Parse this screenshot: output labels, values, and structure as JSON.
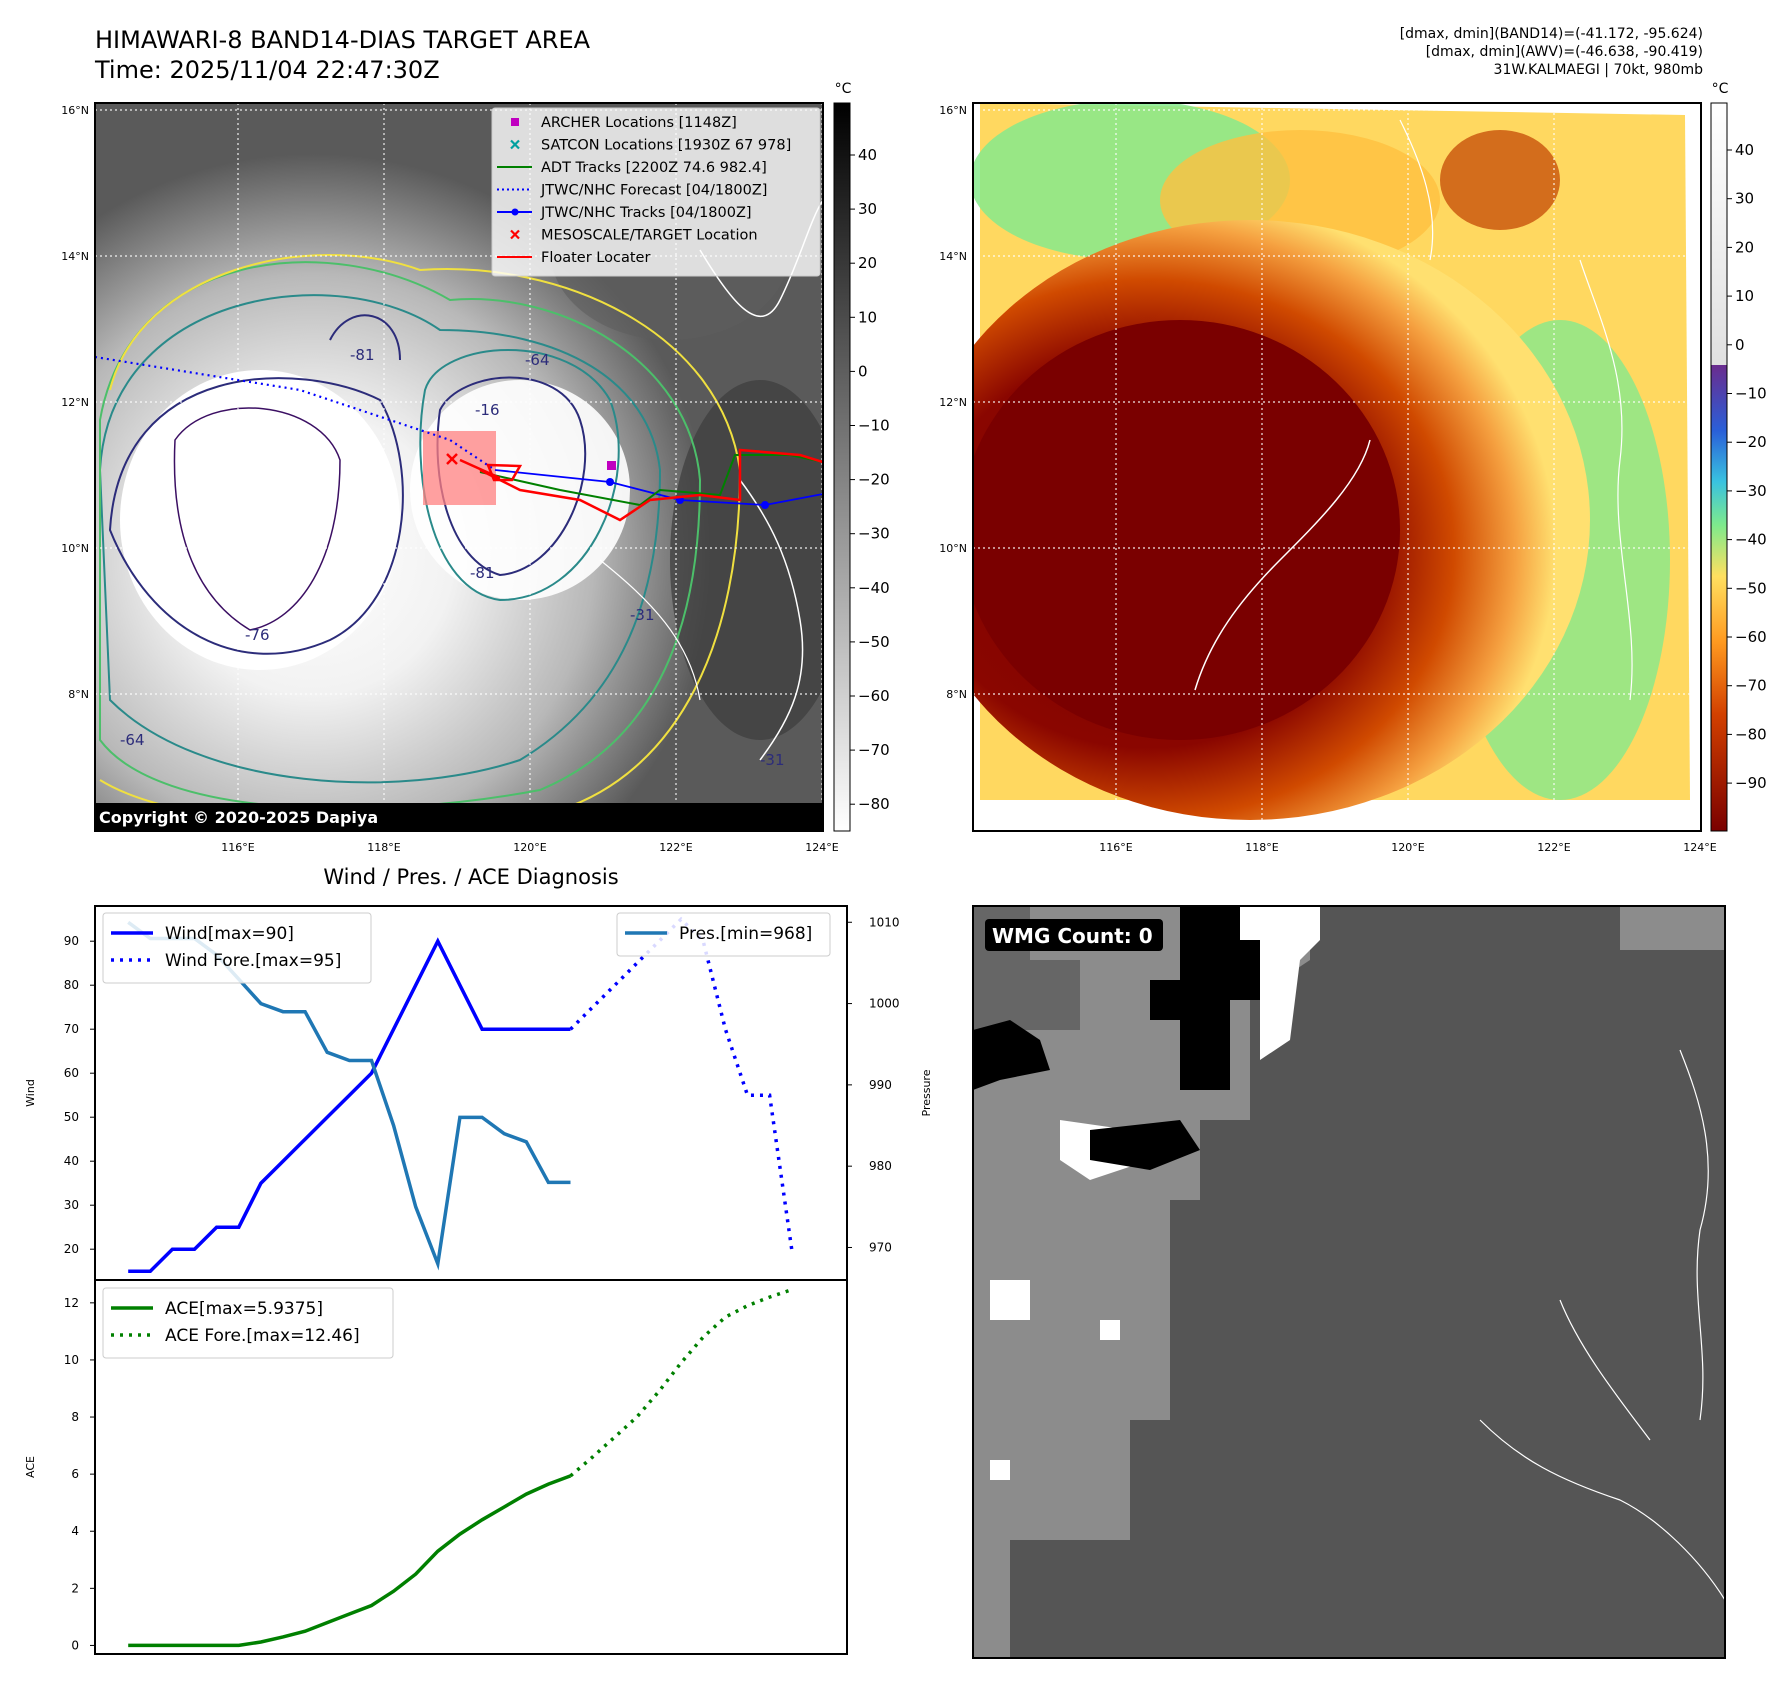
{
  "header": {
    "title_line1": "HIMAWARI-8 BAND14-DIAS TARGET AREA",
    "title_line2": "Time: 2025/11/04 22:47:30Z",
    "info_line1": "[dmax, dmin](BAND14)=(-41.172, -95.624)",
    "info_line2": "[dmax, dmin](AWV)=(-46.638, -90.419)",
    "info_line3": "31W.KALMAEGI | 70kt, 980mb"
  },
  "map_ir": {
    "lat_labels": [
      "16°N",
      "14°N",
      "12°N",
      "10°N",
      "8°N"
    ],
    "lon_labels": [
      "116°E",
      "118°E",
      "120°E",
      "122°E",
      "124°E"
    ],
    "copyright": "Copyright © 2020-2025 Dapiya",
    "contour_labels": [
      "-81",
      "-64",
      "-16",
      "-76",
      "-81",
      "-31",
      "-64",
      "-31"
    ],
    "legend": [
      {
        "label": "ARCHER Locations [1148Z]",
        "color": "#c000c0",
        "marker": "square"
      },
      {
        "label": "SATCON Locations [1930Z 67 978]",
        "color": "#00a0a0",
        "marker": "x"
      },
      {
        "label": "ADT Tracks [2200Z 74.6 982.4]",
        "color": "#008000",
        "marker": "line"
      },
      {
        "label": "JTWC/NHC Forecast [04/1800Z]",
        "color": "#0000ff",
        "marker": "dotted"
      },
      {
        "label": "JTWC/NHC Tracks [04/1800Z]",
        "color": "#0000ff",
        "marker": "line-dot"
      },
      {
        "label": "MESOSCALE/TARGET Location",
        "color": "#ff0000",
        "marker": "x"
      },
      {
        "label": "Floater Locater",
        "color": "#ff0000",
        "marker": "line"
      }
    ],
    "colorbar": {
      "unit": "°C",
      "ticks": [
        "40",
        "30",
        "20",
        "10",
        "0",
        "−10",
        "−20",
        "−30",
        "−40",
        "−50",
        "−60",
        "−70",
        "−80"
      ]
    }
  },
  "map_awv": {
    "lat_labels": [
      "16°N",
      "14°N",
      "12°N",
      "10°N",
      "8°N"
    ],
    "lon_labels": [
      "116°E",
      "118°E",
      "120°E",
      "122°E",
      "124°E"
    ],
    "colorbar": {
      "unit": "°C",
      "ticks": [
        "40",
        "30",
        "20",
        "10",
        "0",
        "−10",
        "−20",
        "−30",
        "−40",
        "−50",
        "−60",
        "−70",
        "−80",
        "−90"
      ]
    }
  },
  "wmg": {
    "label": "WMG Count: 0"
  },
  "chart_data": [
    {
      "type": "line",
      "title": "Wind / Pres. / ACE Diagnosis",
      "ylabel": "Wind",
      "ylabel_right": "Pressure",
      "ylim": [
        13,
        98
      ],
      "ylim_right": [
        966,
        1012
      ],
      "y_ticks": [
        20,
        30,
        40,
        50,
        60,
        70,
        80,
        90
      ],
      "y_ticks_right": [
        970,
        980,
        990,
        1000,
        1010
      ],
      "x": [
        0,
        1,
        2,
        3,
        4,
        5,
        6,
        7,
        8,
        9,
        10,
        11,
        12,
        13,
        14,
        15,
        16,
        17,
        18,
        19,
        20,
        21,
        22,
        23,
        24,
        25,
        26,
        27,
        28,
        29,
        30
      ],
      "xlim": [
        -1.5,
        32.5
      ],
      "series": [
        {
          "name": "Wind[max=90]",
          "axis": "left",
          "style": "solid",
          "color": "#0000ff",
          "x": [
            0,
            1,
            2,
            3,
            4,
            5,
            6,
            7,
            8,
            9,
            10,
            11,
            12,
            13,
            14,
            15,
            16,
            17,
            18,
            19,
            20
          ],
          "values": [
            15,
            15,
            20,
            20,
            25,
            25,
            35,
            40,
            45,
            50,
            55,
            60,
            70,
            80,
            90,
            80,
            70,
            70,
            70,
            70,
            70
          ]
        },
        {
          "name": "Wind Fore.[max=95]",
          "axis": "left",
          "style": "dotted",
          "color": "#0000ff",
          "x": [
            20,
            21,
            22,
            23,
            24,
            25,
            26,
            27,
            28,
            29,
            30
          ],
          "values": [
            70,
            75,
            80,
            85,
            90,
            95,
            90,
            70,
            55,
            55,
            20
          ]
        },
        {
          "name": "Pres.[min=968]",
          "axis": "right",
          "style": "solid",
          "color": "#1f77b4",
          "x": [
            0,
            1,
            2,
            3,
            4,
            5,
            6,
            7,
            8,
            9,
            10,
            11,
            12,
            13,
            14,
            15,
            16,
            17,
            18,
            19,
            20
          ],
          "values": [
            1010,
            1008,
            1008,
            1008,
            1006,
            1003,
            1000,
            999,
            999,
            994,
            993,
            993,
            985,
            975,
            968,
            986,
            986,
            984,
            983,
            978,
            978
          ]
        }
      ]
    },
    {
      "type": "line",
      "ylabel": "ACE",
      "ylim": [
        -0.3,
        12.8
      ],
      "y_ticks": [
        0,
        2,
        4,
        6,
        8,
        10,
        12
      ],
      "xlim": [
        -1.5,
        32.5
      ],
      "series": [
        {
          "name": "ACE[max=5.9375]",
          "style": "solid",
          "color": "#008000",
          "x": [
            0,
            1,
            2,
            3,
            4,
            5,
            6,
            7,
            8,
            9,
            10,
            11,
            12,
            13,
            14,
            15,
            16,
            17,
            18,
            19,
            20
          ],
          "values": [
            0,
            0,
            0,
            0,
            0,
            0,
            0.12,
            0.3,
            0.5,
            0.8,
            1.1,
            1.4,
            1.9,
            2.5,
            3.3,
            3.9,
            4.4,
            4.85,
            5.3,
            5.65,
            5.94
          ]
        },
        {
          "name": "ACE Fore.[max=12.46]",
          "style": "dotted",
          "color": "#008000",
          "x": [
            20,
            21,
            22,
            23,
            24,
            25,
            26,
            27,
            28,
            29,
            30
          ],
          "values": [
            5.94,
            6.6,
            7.3,
            8.0,
            8.9,
            9.9,
            10.8,
            11.5,
            11.9,
            12.2,
            12.46
          ]
        }
      ]
    }
  ]
}
